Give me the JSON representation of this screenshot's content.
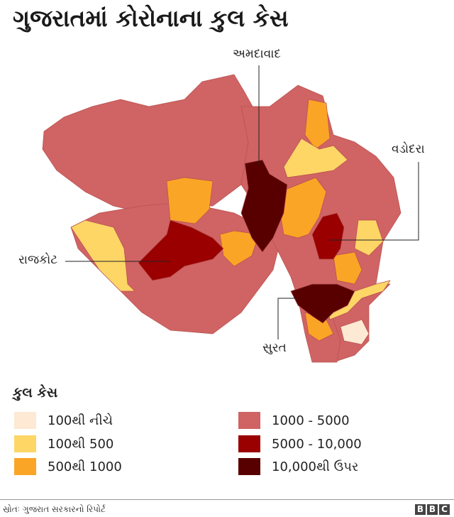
{
  "title": "ગુજરાતમાં કોરોનાના કુલ કેસ",
  "labels": {
    "ahmedabad": "અમદાવાદ",
    "vadodara": "વડોદરા",
    "rajkot": "રાજકોટ",
    "surat": "સુરત"
  },
  "legend": {
    "title": "કુલ કેસ",
    "items": [
      {
        "label": "100થી નીચે",
        "color": "#fde9d4"
      },
      {
        "label": "100થી 500",
        "color": "#fdd666"
      },
      {
        "label": "500થી 1000",
        "color": "#fba526"
      },
      {
        "label": "1000 - 5000",
        "color": "#d06363"
      },
      {
        "label": "5000 - 10,000",
        "color": "#9a0000"
      },
      {
        "label": "10,000થી ઉપર",
        "color": "#580000"
      }
    ]
  },
  "source": "સ્રોતઃ ગુજરાત સરકારનો રિપોર્ટ",
  "logo": [
    "B",
    "B",
    "C"
  ]
}
